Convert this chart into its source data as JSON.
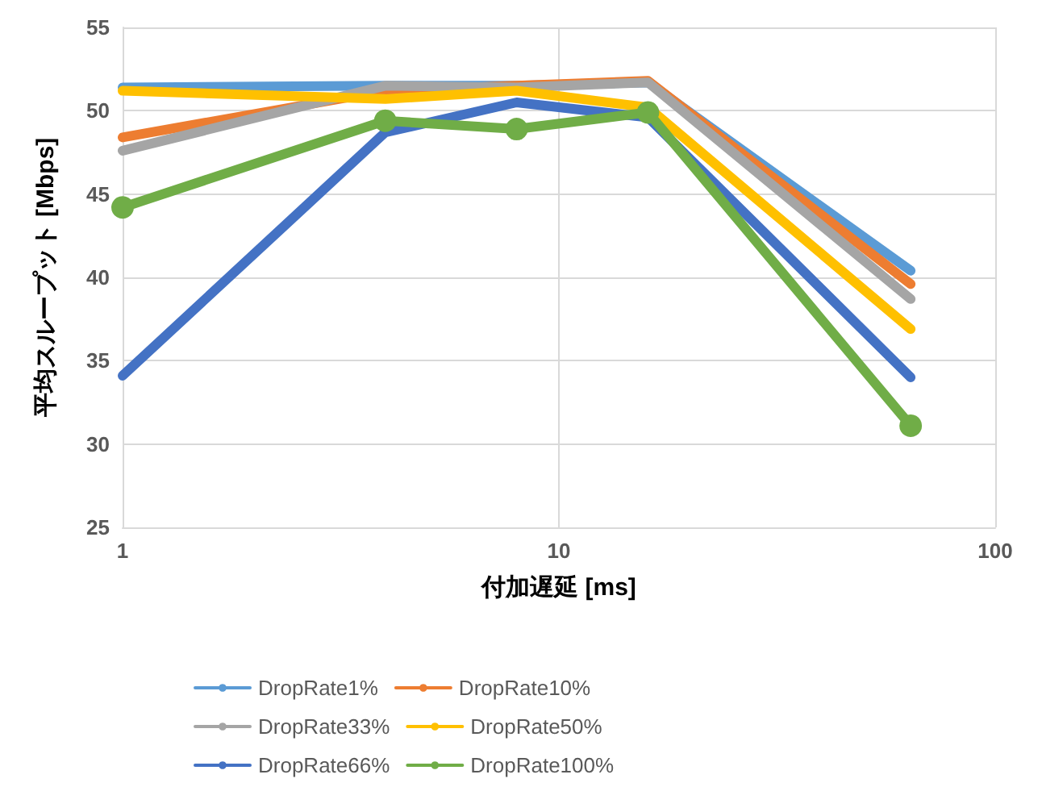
{
  "chart_data": {
    "type": "line",
    "xlabel": "付加遅延 [ms]",
    "ylabel": "平均スループット [Mbps]",
    "x": [
      1,
      4,
      8,
      16,
      64
    ],
    "log": "x",
    "xlim": [
      1,
      100
    ],
    "xticks": [
      1,
      10,
      100
    ],
    "ylim": [
      25,
      55
    ],
    "yticks": [
      25,
      30,
      35,
      40,
      45,
      50,
      55
    ],
    "grid": true,
    "legend": "bottom",
    "line_style": "solid",
    "marker": "none",
    "series": [
      {
        "name": "DropRate1%",
        "color": "#5b9bd5",
        "values": [
          51.4,
          51.5,
          51.5,
          51.7,
          40.4
        ]
      },
      {
        "name": "DropRate10%",
        "color": "#ed7d31",
        "values": [
          48.4,
          51.2,
          51.5,
          51.8,
          39.6
        ]
      },
      {
        "name": "DropRate33%",
        "color": "#a5a5a5",
        "values": [
          47.6,
          51.5,
          51.4,
          51.7,
          38.7
        ]
      },
      {
        "name": "DropRate50%",
        "color": "#ffc000",
        "values": [
          51.2,
          50.7,
          51.2,
          50.2,
          36.9
        ]
      },
      {
        "name": "DropRate66%",
        "color": "#4472c4",
        "values": [
          34.1,
          48.7,
          50.5,
          49.6,
          34.0
        ]
      },
      {
        "name": "DropRate100%",
        "color": "#70ad47",
        "marker": "circle",
        "values": [
          44.2,
          49.4,
          48.9,
          49.9,
          31.1
        ]
      }
    ]
  }
}
